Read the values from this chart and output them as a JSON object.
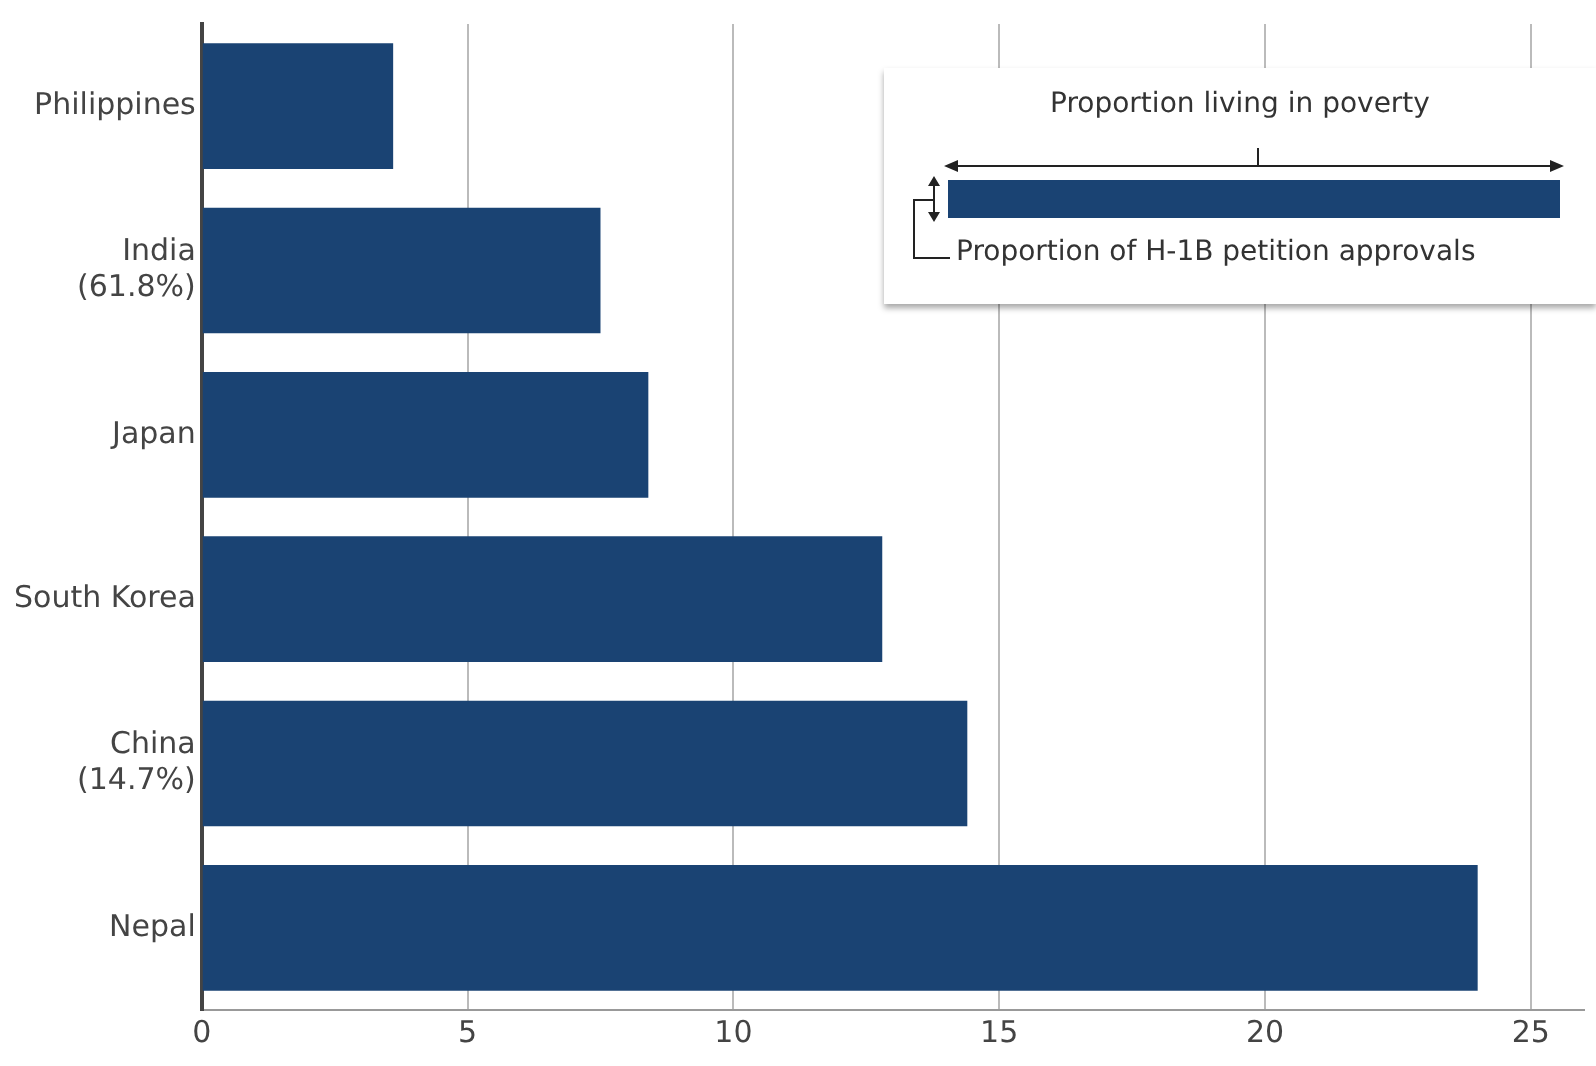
{
  "chart_data": {
    "type": "bar",
    "orientation": "horizontal",
    "categories": [
      "Philippines",
      "India\n(61.8%)",
      "Japan",
      "South Korea",
      "China\n(14.7%)",
      "Nepal"
    ],
    "values": [
      3.6,
      7.5,
      8.4,
      12.8,
      14.4,
      24.0
    ],
    "color": "#1a4373",
    "xlim": [
      0,
      26
    ],
    "xticks": [
      0,
      5,
      10,
      15,
      20,
      25
    ],
    "grid": "x",
    "legend": false,
    "annotations": [
      "Proportion living in poverty",
      "Proportion of H-1B petition approvals"
    ]
  }
}
